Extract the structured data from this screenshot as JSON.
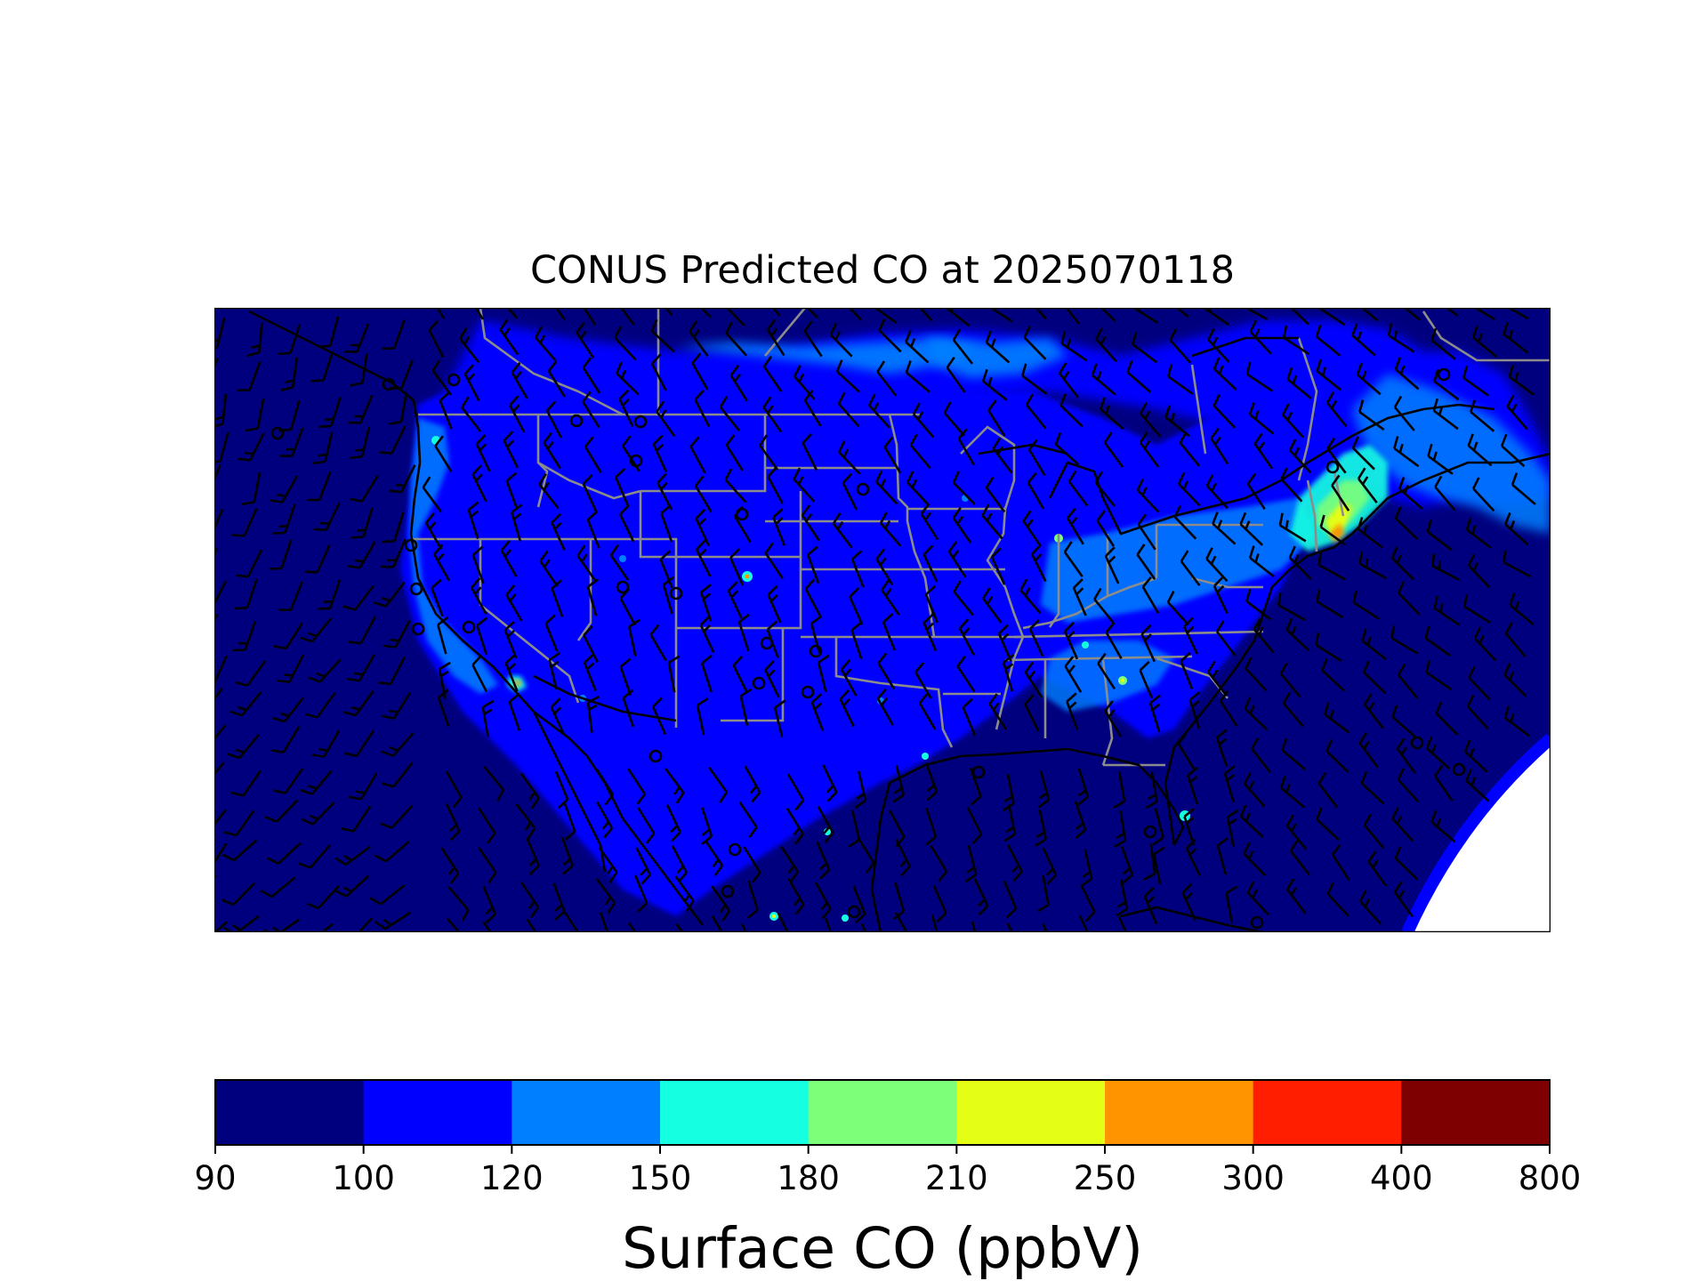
{
  "title": "CONUS Predicted CO at 2025070118",
  "colorbar": {
    "label": "Surface CO (ppbV)",
    "ticks": [
      "90",
      "100",
      "120",
      "150",
      "180",
      "210",
      "250",
      "300",
      "400",
      "800"
    ],
    "colors": [
      "#00007f",
      "#0000ff",
      "#0080ff",
      "#15ffe1",
      "#7dff7a",
      "#e4ff13",
      "#ff9400",
      "#ff1e00",
      "#7f0000"
    ]
  },
  "map": {
    "region": "CONUS",
    "field": "Surface CO",
    "overlays": [
      "state-borders",
      "coastlines",
      "wind-barbs"
    ],
    "background_color": "#00007f"
  }
}
